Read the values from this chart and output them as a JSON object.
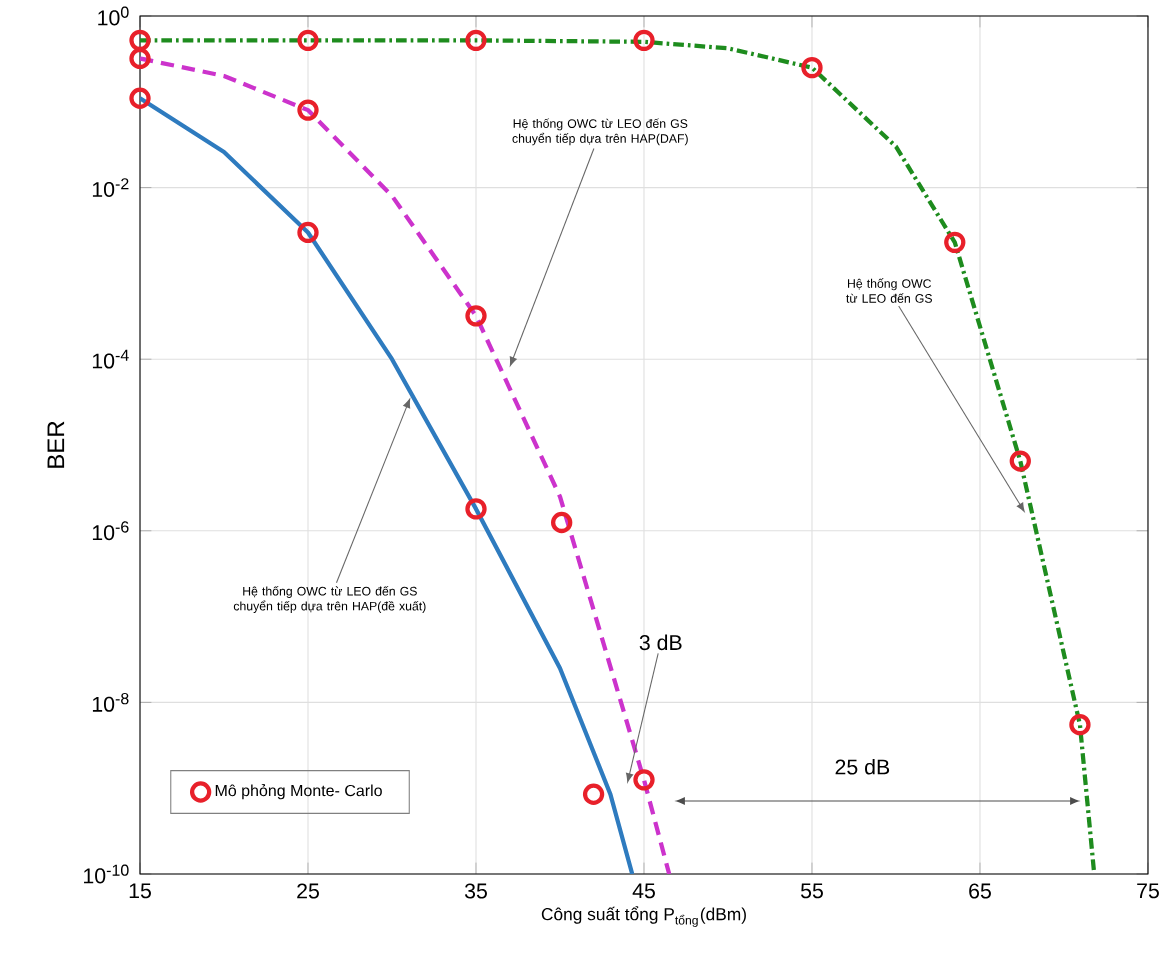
{
  "chart_data": {
    "type": "line",
    "xlabel": "Công suất tổng P$_{tổng}$(dBm)",
    "ylabel": "BER",
    "xlim": [
      15,
      75
    ],
    "xticks": [
      15,
      25,
      35,
      45,
      55,
      65,
      75
    ],
    "ylim": [
      1e-10,
      1
    ],
    "log": "y",
    "yticks": [
      {
        "value": 1e-10,
        "label": "10$^{-10}$"
      },
      {
        "value": 1e-08,
        "label": "10$^{-8}$"
      },
      {
        "value": 1e-06,
        "label": "10$^{-6}$"
      },
      {
        "value": 0.0001,
        "label": "10$^{-4}$"
      },
      {
        "value": 0.01,
        "label": "10$^{-2}$"
      },
      {
        "value": 1,
        "label": "10$^{0}$"
      }
    ],
    "grid": true,
    "legend": "bottom left",
    "series": [
      {
        "color": "#2e7bbf",
        "line_style": "solid",
        "marker": "none",
        "x": [
          15,
          20,
          25,
          30,
          35,
          40,
          43,
          44.3
        ],
        "values": [
          0.11,
          0.026,
          0.003,
          0.0001,
          1.8e-06,
          2.5e-08,
          8.5e-10,
          1e-10
        ]
      },
      {
        "color": "#cc33cc",
        "line_style": "dashed",
        "marker": "none",
        "x": [
          15,
          20,
          25,
          30,
          35,
          40,
          45,
          46.5
        ],
        "values": [
          0.32,
          0.2,
          0.08,
          0.008,
          0.00032,
          2.5e-06,
          1.25e-09,
          1e-10
        ]
      },
      {
        "color": "#1e8c1e",
        "line_style": "dashdot",
        "marker": "none",
        "x": [
          15,
          25,
          35,
          45,
          50,
          55,
          60,
          63.5,
          67.4,
          70.95,
          71.8
        ],
        "values": [
          0.52,
          0.52,
          0.52,
          0.5,
          0.42,
          0.25,
          0.03,
          0.0023,
          6.5e-06,
          5.5e-09,
          1e-10
        ]
      },
      {
        "type": "scatter",
        "name": "Mô phỏng Monte- Carlo",
        "color": "#e8202a",
        "marker": "circle",
        "x": [
          15,
          25,
          35,
          45,
          15,
          25,
          35,
          40.1,
          45,
          15,
          25,
          35,
          42,
          55,
          63.5,
          67.4,
          70.95
        ],
        "values": [
          0.52,
          0.52,
          0.52,
          0.52,
          0.32,
          0.08,
          0.00032,
          1.25e-06,
          1.25e-09,
          0.11,
          0.003,
          1.8e-06,
          8.5e-10,
          0.25,
          0.0023,
          6.5e-06,
          5.5e-09
        ]
      }
    ],
    "annotations": [
      {
        "text": "Hệ thống OWC từ LEO đến GS chuyển tiếp dựa trên HAP(DAF)",
        "x": 37,
        "y": 8e-05
      },
      {
        "text": "Hệ thống OWC từ LEO đến GS",
        "x": 67.7,
        "y": 1.6e-06
      },
      {
        "text": "Hệ thống OWC từ LEO đến GS chuyển tiếp dựa trên HAP(đề xuất)",
        "x": 31.1,
        "y": 3.6e-05
      },
      "3 dB",
      "25 dB"
    ]
  }
}
